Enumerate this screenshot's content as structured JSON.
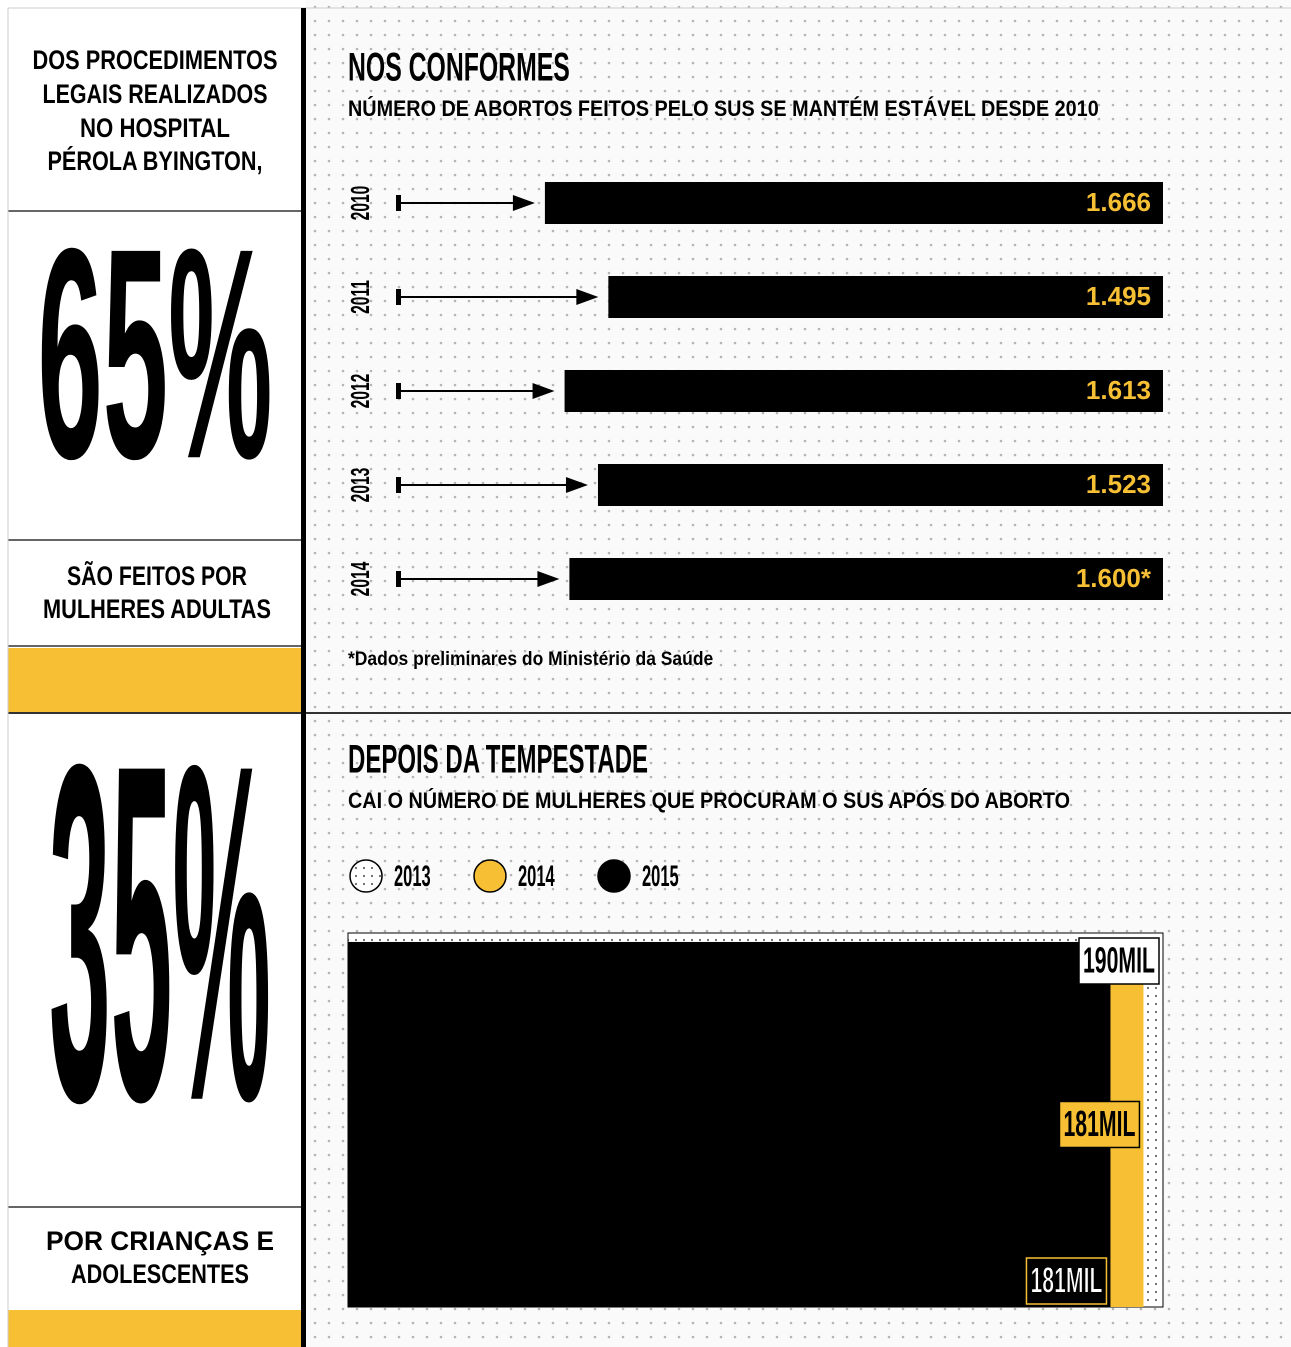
{
  "sidebar": {
    "intro": [
      "DOS PROCEDIMENTOS",
      "LEGAIS REALIZADOS",
      "NO HOSPITAL",
      "PÉROLA BYINGTON,"
    ],
    "share_adults": "65%",
    "adults": [
      "SÃO FEITOS POR",
      "MULHERES ADULTAS"
    ],
    "share_minors": "35%",
    "minors": [
      "POR  CRIANÇAS  E",
      "ADOLESCENTES"
    ]
  },
  "chart_data": [
    {
      "type": "bar",
      "title": "NOS CONFORMES",
      "subtitle": "NÚMERO DE ABORTOS FEITOS PELO SUS SE MANTÉM ESTÁVEL DESDE 2010",
      "categories": [
        "2010",
        "2011",
        "2012",
        "2013",
        "2014"
      ],
      "values": [
        1666,
        1495,
        1613,
        1523,
        1600
      ],
      "value_labels": [
        "1.666",
        "1.495",
        "1.613",
        "1.523",
        "1.600*"
      ],
      "color": "#000000",
      "label_color": "#f7c034",
      "note": "*Dados preliminares do Ministério da Saúde"
    },
    {
      "type": "nested",
      "title": "DEPOIS DA TEMPESTADE",
      "subtitle": "CAI O NÚMERO DE MULHERES QUE PROCURAM O SUS APÓS DO ABORTO",
      "series": [
        {
          "name": "2013",
          "color": "#ffffff",
          "pattern": "dots",
          "values": [
            190
          ],
          "value_labels": [
            "190MIL"
          ]
        },
        {
          "name": "2014",
          "color": "#f7c034",
          "values": [
            181
          ],
          "value_labels": [
            "181MIL"
          ]
        },
        {
          "name": "2015",
          "color": "#000000",
          "values": [
            181
          ],
          "value_labels": [
            "181MIL"
          ]
        }
      ]
    }
  ]
}
